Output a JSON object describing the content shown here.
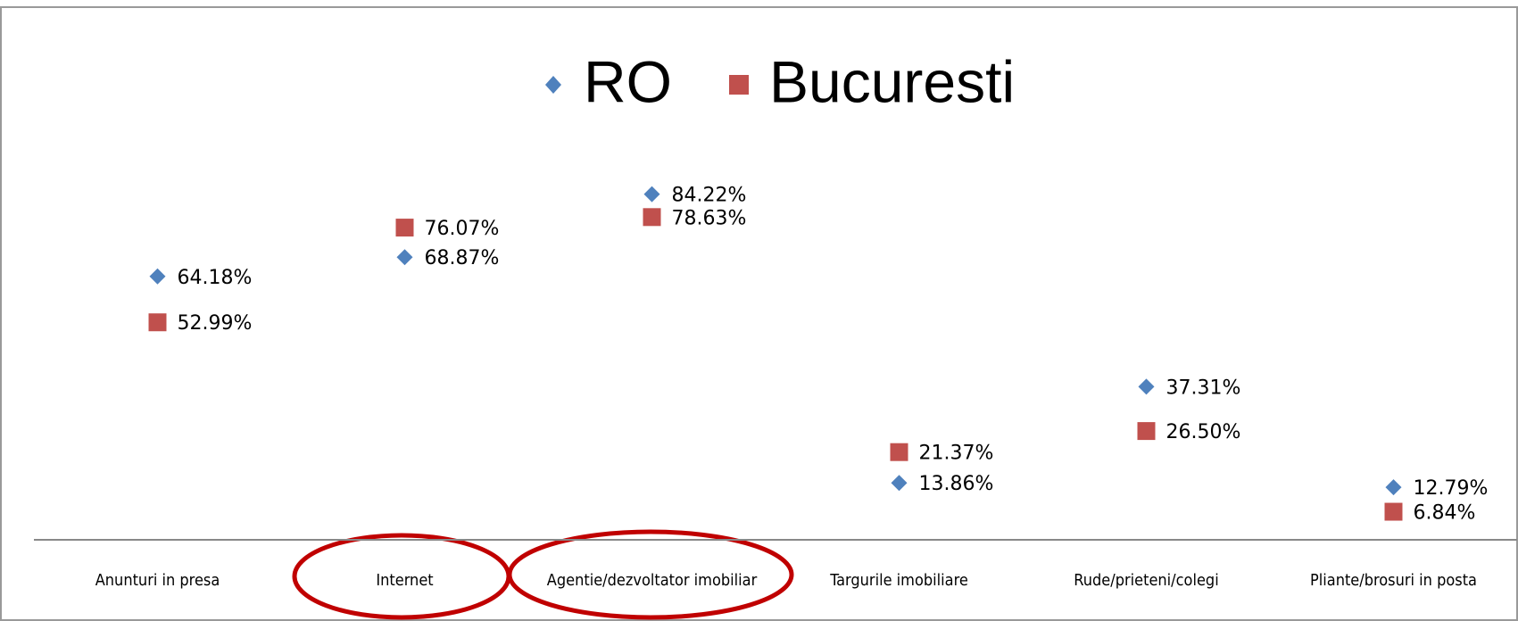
{
  "chart_data": {
    "type": "dot",
    "categories": [
      "Anunturi in presa",
      "Internet",
      "Agentie/dezvoltator imobiliar",
      "Targurile imobiliare",
      "Rude/prieteni/colegi",
      "Pliante/brosuri in posta"
    ],
    "series": [
      {
        "name": "RO",
        "color": "#4f81bd",
        "marker": "diamond",
        "values": [
          64.18,
          68.87,
          84.22,
          13.86,
          37.31,
          12.79
        ],
        "value_labels": [
          "64.18%",
          "68.87%",
          "84.22%",
          "13.86%",
          "37.31%",
          "12.79%"
        ]
      },
      {
        "name": "Bucuresti",
        "color": "#c0504d",
        "marker": "square",
        "values": [
          52.99,
          76.07,
          78.63,
          21.37,
          26.5,
          6.84
        ],
        "value_labels": [
          "52.99%",
          "76.07%",
          "78.63%",
          "21.37%",
          "26.50%",
          "6.84%"
        ]
      }
    ],
    "ylim": [
      0,
      100
    ]
  }
}
